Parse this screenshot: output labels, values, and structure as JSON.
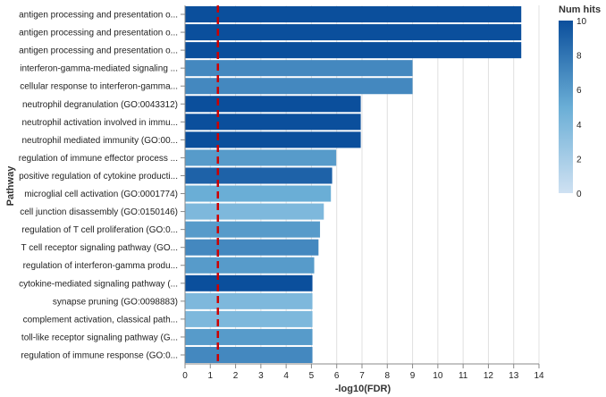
{
  "chart_data": {
    "type": "bar",
    "orientation": "horizontal",
    "xlabel": "-log10(FDR)",
    "ylabel": "Pathway",
    "xlim": [
      0,
      14
    ],
    "x_ticks": [
      0,
      1,
      2,
      3,
      4,
      5,
      6,
      7,
      8,
      9,
      10,
      11,
      12,
      13,
      14
    ],
    "grid": true,
    "threshold_line": {
      "x": 1.3,
      "color": "#cc0000",
      "style": "dashed"
    },
    "color_encoding": {
      "title": "Num hits",
      "scale": "sequential-blues",
      "domain": [
        0,
        10
      ],
      "ticks": [
        0,
        2,
        4,
        6,
        8,
        10
      ],
      "color_low": "#cfe1f2",
      "color_high": "#0b4f9c"
    },
    "legend_position": "top-right",
    "categories": [
      "antigen processing and presentation o...",
      "antigen processing and presentation o...",
      "antigen processing and presentation o...",
      "interferon-gamma-mediated signaling ...",
      "cellular response to interferon-gamma...",
      "neutrophil degranulation (GO:0043312)",
      "neutrophil activation involved in immu...",
      "neutrophil mediated immunity (GO:00...",
      "regulation of immune effector process ...",
      "positive regulation of cytokine producti...",
      "microglial cell activation (GO:0001774)",
      "cell junction disassembly (GO:0150146)",
      "regulation of T cell proliferation (GO:0...",
      "T cell receptor signaling pathway (GO...",
      "regulation of interferon-gamma produ...",
      "cytokine-mediated signaling pathway (...",
      "synapse pruning (GO:0098883)",
      "complement activation, classical path...",
      "toll-like receptor signaling pathway (G...",
      "regulation of immune response (GO:0..."
    ],
    "values": [
      13.3,
      13.3,
      13.3,
      9.0,
      9.0,
      6.95,
      6.95,
      6.95,
      5.98,
      5.82,
      5.77,
      5.49,
      5.34,
      5.28,
      5.11,
      5.04,
      5.04,
      5.04,
      5.04,
      5.04
    ],
    "num_hits": [
      10,
      10,
      10,
      7,
      7,
      10,
      10,
      10,
      6,
      9,
      5,
      4,
      6,
      7,
      6,
      10,
      4,
      4,
      6,
      7
    ]
  }
}
